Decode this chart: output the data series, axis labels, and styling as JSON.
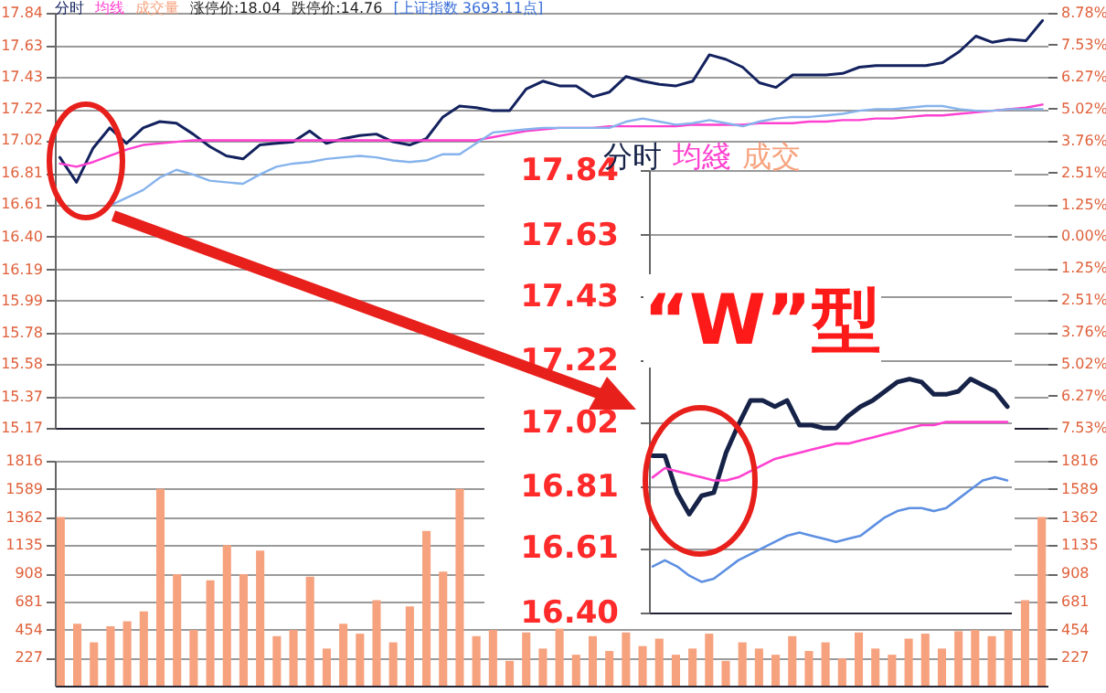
{
  "chart_data": [
    {
      "type": "line",
      "legend": "top left",
      "grid": "y",
      "tick_labels": "y",
      "categories": [
        null,
        null,
        null,
        null,
        null,
        null,
        null,
        null,
        null,
        null,
        null,
        null,
        null,
        null,
        null,
        null,
        null,
        null,
        null,
        null,
        null,
        null,
        null,
        null,
        null,
        null,
        null,
        null,
        null,
        null,
        null,
        null,
        null,
        null,
        null,
        null,
        null,
        null,
        null,
        null,
        null,
        null,
        null,
        null,
        null,
        null,
        null,
        null,
        null,
        null,
        null,
        null,
        null,
        null,
        null,
        null,
        null,
        null,
        null,
        null
      ],
      "series": [
        {
          "name": "分时",
          "color": "#13225e",
          "values": [
            16.91,
            16.75,
            16.97,
            17.1,
            17.0,
            17.1,
            17.14,
            17.13,
            17.06,
            16.98,
            16.92,
            16.9,
            16.99,
            17.0,
            17.01,
            17.08,
            17.0,
            17.03,
            17.05,
            17.06,
            17.01,
            16.99,
            17.03,
            17.17,
            17.24,
            17.23,
            17.21,
            17.21,
            17.35,
            17.4,
            17.37,
            17.37,
            17.3,
            17.33,
            17.43,
            17.4,
            17.38,
            17.37,
            17.4,
            17.57,
            17.54,
            17.49,
            17.39,
            17.36,
            17.44,
            17.44,
            17.44,
            17.45,
            17.49,
            17.5,
            17.5,
            17.5,
            17.5,
            17.52,
            17.59,
            17.69,
            17.65,
            17.67,
            17.66,
            17.79
          ]
        },
        {
          "name": "均线",
          "color": "#ff40d0",
          "values": [
            16.87,
            16.85,
            16.88,
            16.92,
            16.96,
            16.99,
            17.0,
            17.01,
            17.02,
            17.02,
            17.02,
            17.02,
            17.02,
            17.02,
            17.02,
            17.02,
            17.02,
            17.02,
            17.02,
            17.02,
            17.02,
            17.02,
            17.02,
            17.02,
            17.02,
            17.02,
            17.04,
            17.06,
            17.08,
            17.09,
            17.1,
            17.1,
            17.1,
            17.11,
            17.11,
            17.11,
            17.11,
            17.11,
            17.12,
            17.12,
            17.12,
            17.12,
            17.13,
            17.13,
            17.13,
            17.14,
            17.14,
            17.15,
            17.15,
            17.16,
            17.16,
            17.17,
            17.18,
            17.18,
            17.19,
            17.2,
            17.21,
            17.22,
            17.23,
            17.25
          ]
        },
        {
          "color": "#86b3ec",
          "values": [
            null,
            null,
            null,
            16.6,
            16.65,
            16.7,
            16.78,
            16.83,
            16.8,
            16.76,
            16.75,
            16.74,
            16.8,
            16.85,
            16.87,
            16.88,
            16.9,
            16.91,
            16.92,
            16.91,
            16.89,
            16.88,
            16.89,
            16.93,
            16.93,
            17.0,
            17.07,
            17.08,
            17.09,
            17.1,
            17.1,
            17.1,
            17.1,
            17.1,
            17.14,
            17.16,
            17.14,
            17.12,
            17.13,
            17.15,
            17.13,
            17.11,
            17.14,
            17.16,
            17.17,
            17.17,
            17.18,
            17.19,
            17.21,
            17.22,
            17.22,
            17.23,
            17.24,
            17.24,
            17.22,
            17.21,
            17.21,
            17.22,
            17.22,
            17.22
          ]
        }
      ],
      "ylim": [
        15.17,
        17.84
      ],
      "yticks": [
        17.84,
        17.63,
        17.43,
        17.22,
        17.02,
        16.81,
        16.61,
        {
          "value": 16.4,
          "label": "16.40"
        },
        16.19,
        15.99,
        15.78,
        15.58,
        15.37,
        15.17
      ],
      "y2lim": [
        -7.53,
        8.78
      ],
      "y2ticks": [
        {
          "value": 8.78,
          "label": "8.78%"
        },
        {
          "value": 7.53,
          "label": "7.53%"
        },
        {
          "value": 6.27,
          "label": "6.27%"
        },
        {
          "value": 5.02,
          "label": "5.02%"
        },
        {
          "value": 3.76,
          "label": "3.76%"
        },
        {
          "value": 2.51,
          "label": "2.51%"
        },
        {
          "value": 1.25,
          "label": "1.25%"
        },
        {
          "value": 0,
          "label": "0.00%"
        },
        {
          "value": -1.25,
          "label": "1.25%"
        },
        {
          "value": -2.51,
          "label": "2.51%"
        },
        {
          "value": -3.76,
          "label": "3.76%"
        },
        {
          "value": -5.02,
          "label": "5.02%"
        },
        {
          "value": -6.27,
          "label": "6.27%"
        },
        {
          "value": -7.53,
          "label": "7.53%"
        }
      ],
      "annotations": [
        "涨停价:18.04",
        "跌停价:14.76",
        "[上证指数 3693.11点]"
      ]
    },
    {
      "type": "bar",
      "grid": "y",
      "tick_labels": "y",
      "categories": [
        null,
        null,
        null,
        null,
        null,
        null,
        null,
        null,
        null,
        null,
        null,
        null,
        null,
        null,
        null,
        null,
        null,
        null,
        null,
        null,
        null,
        null,
        null,
        null,
        null,
        null,
        null,
        null,
        null,
        null,
        null,
        null,
        null,
        null,
        null,
        null,
        null,
        null,
        null,
        null,
        null,
        null,
        null,
        null,
        null,
        null,
        null,
        null,
        null,
        null,
        null,
        null,
        null,
        null,
        null,
        null,
        null,
        null,
        null,
        null
      ],
      "series": [
        {
          "name": "成交量",
          "color": "#f7a27e",
          "values": [
            1362,
            500,
            350,
            480,
            520,
            600,
            1589,
            900,
            450,
            850,
            1135,
            900,
            1090,
            400,
            450,
            880,
            300,
            500,
            420,
            690,
            350,
            640,
            1250,
            920,
            1589,
            400,
            450,
            200,
            430,
            300,
            460,
            250,
            400,
            280,
            430,
            320,
            380,
            250,
            300,
            420,
            200,
            350,
            300,
            250,
            400,
            280,
            350,
            220,
            430,
            300,
            250,
            380,
            420,
            300,
            440,
            450,
            400,
            450,
            690,
            1362
          ]
        }
      ],
      "ylim": [
        0,
        1816
      ],
      "yticks": [
        1816,
        1589,
        1362,
        1135,
        908,
        681,
        454,
        227
      ],
      "y2lim": [
        0,
        1816
      ],
      "y2ticks": [
        1816,
        1589,
        1362,
        1135,
        908,
        681,
        454,
        227
      ]
    },
    {
      "type": "line",
      "legend": "top left",
      "grid": "y",
      "tick_labels": "y",
      "categories": [
        null,
        null,
        null,
        null,
        null,
        null,
        null,
        null,
        null,
        null,
        null,
        null,
        null,
        null,
        null,
        null,
        null,
        null,
        null,
        null,
        null,
        null,
        null,
        null,
        null,
        null,
        null,
        null,
        null,
        null
      ],
      "series": [
        {
          "name": "分时",
          "color": "#162247",
          "values": [
            16.91,
            16.91,
            16.79,
            16.72,
            16.78,
            16.79,
            16.92,
            17.01,
            17.09,
            17.09,
            17.07,
            17.09,
            17.01,
            17.01,
            17.0,
            17.0,
            17.04,
            17.07,
            17.09,
            17.12,
            17.15,
            17.16,
            17.15,
            17.11,
            17.11,
            17.12,
            17.16,
            17.14,
            17.12,
            17.07
          ]
        },
        {
          "name": "均綫",
          "color": "#ff40d0",
          "values": [
            16.84,
            16.87,
            16.86,
            16.85,
            16.84,
            16.83,
            16.83,
            16.84,
            16.86,
            16.88,
            16.9,
            16.91,
            16.92,
            16.93,
            16.94,
            16.95,
            16.95,
            16.96,
            16.97,
            16.98,
            16.99,
            17.0,
            17.01,
            17.01,
            17.02,
            17.02,
            17.02,
            17.02,
            17.02,
            17.02
          ]
        },
        {
          "color": "#5d8fe2",
          "values": [
            16.55,
            16.57,
            16.55,
            16.52,
            16.5,
            16.51,
            16.54,
            16.57,
            16.59,
            16.61,
            16.63,
            16.65,
            16.66,
            16.65,
            16.64,
            16.63,
            16.64,
            16.65,
            16.68,
            16.71,
            16.73,
            16.74,
            16.74,
            16.73,
            16.74,
            16.77,
            16.8,
            16.83,
            16.84,
            16.83
          ]
        }
      ],
      "ylim": [
        16.4,
        17.84
      ],
      "yticks": [
        17.84,
        17.63,
        17.43,
        17.22,
        17.02,
        16.81,
        16.61,
        {
          "value": 16.4,
          "label": "16.40"
        }
      ],
      "annotations": [
        "“W”型",
        "成交"
      ]
    }
  ]
}
